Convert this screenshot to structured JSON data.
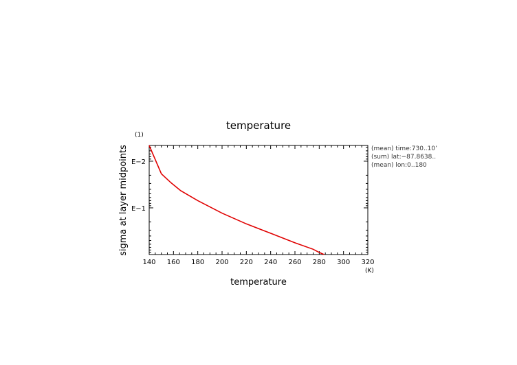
{
  "chart_data": {
    "type": "line",
    "title": "temperature",
    "xlabel": "temperature",
    "ylabel": "sigma at layer midpoints",
    "x_unit": "(K)",
    "y_unit": "(1)",
    "xlim": [
      140,
      320
    ],
    "ylim": [
      0.0046,
      1
    ],
    "y_scale": "log",
    "y_reversed": true,
    "x_ticks": [
      140,
      160,
      180,
      200,
      220,
      240,
      260,
      280,
      300,
      320
    ],
    "y_ticks": [
      {
        "value": 0.01,
        "label": "E−2"
      },
      {
        "value": 0.1,
        "label": "E−1"
      }
    ],
    "notes": [
      "(mean) time:730..10’",
      "(sum) lat:−87.8638..",
      "(mean) lon:0..180"
    ],
    "series": [
      {
        "color": "#e00000",
        "x": [
          140,
          150,
          158,
          166,
          180,
          200,
          220,
          240,
          260,
          275,
          280,
          284
        ],
        "y": [
          0.0046,
          0.0186,
          0.029,
          0.043,
          0.07,
          0.13,
          0.22,
          0.35,
          0.56,
          0.77,
          0.9,
          1.0
        ]
      }
    ]
  }
}
